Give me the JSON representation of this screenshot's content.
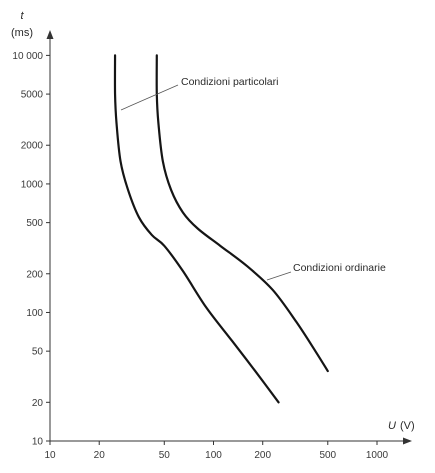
{
  "chart_data": {
    "type": "line",
    "title": "",
    "xscale": "log",
    "yscale": "log",
    "xlim": [
      10,
      1400
    ],
    "ylim": [
      10,
      10000
    ],
    "grid": false,
    "y_axis": {
      "symbol": "t",
      "unit": "(ms)"
    },
    "x_axis": {
      "symbol": "U",
      "unit": "(V)"
    },
    "xticks": [
      10,
      20,
      50,
      100,
      200,
      500,
      1000
    ],
    "xtick_labels": [
      "10",
      "20",
      "50",
      "100",
      "200",
      "500",
      "1000"
    ],
    "yticks": [
      10,
      20,
      50,
      100,
      200,
      500,
      1000,
      2000,
      5000,
      10000
    ],
    "ytick_labels": [
      "10",
      "20",
      "50",
      "100",
      "200",
      "500",
      "1000",
      "2000",
      "5000",
      "10 000"
    ],
    "series": [
      {
        "name": "Condizioni particolari",
        "points": [
          [
            25,
            10000
          ],
          [
            25,
            5000
          ],
          [
            25.5,
            3000
          ],
          [
            27,
            1500
          ],
          [
            30,
            900
          ],
          [
            35,
            550
          ],
          [
            42,
            400
          ],
          [
            50,
            330
          ],
          [
            65,
            210
          ],
          [
            90,
            110
          ],
          [
            130,
            60
          ],
          [
            180,
            35
          ],
          [
            250,
            20
          ]
        ]
      },
      {
        "name": "Condizioni ordinarie",
        "points": [
          [
            45,
            10000
          ],
          [
            45,
            5000
          ],
          [
            46,
            3000
          ],
          [
            49,
            1500
          ],
          [
            55,
            900
          ],
          [
            65,
            600
          ],
          [
            80,
            450
          ],
          [
            110,
            330
          ],
          [
            160,
            230
          ],
          [
            230,
            150
          ],
          [
            320,
            85
          ],
          [
            420,
            50
          ],
          [
            500,
            35
          ]
        ]
      }
    ],
    "annotations": [
      {
        "text": "Condizioni particolari",
        "series": 0
      },
      {
        "text": "Condizioni ordinarie",
        "series": 1
      }
    ]
  }
}
